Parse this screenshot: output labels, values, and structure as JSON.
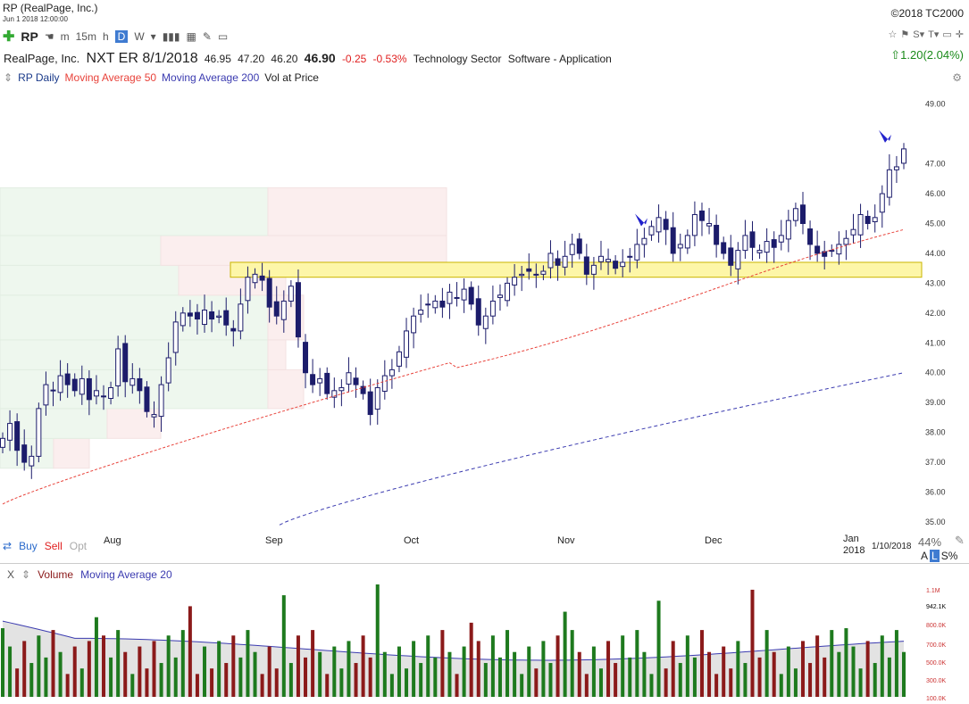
{
  "header": {
    "title": "RP (RealPage, Inc.)",
    "timestamp": "Jun 1 2018 12:00:00",
    "copyright": "©2018 TC2000"
  },
  "toolbar": {
    "symbol": "RP",
    "intervals": [
      "m",
      "15m",
      "h",
      "D",
      "W"
    ],
    "active_interval": "D"
  },
  "quote": {
    "company": "RealPage, Inc.",
    "ticker": "NXT ER 8/1/2018",
    "open": "46.95",
    "high": "47.20",
    "low": "46.20",
    "last": "46.90",
    "change": "-0.25",
    "change_pct": "-0.53%",
    "sector": "Technology Sector",
    "industry": "Software - Application",
    "right_change": "1.20(2.04%)"
  },
  "legend": {
    "symbol_label": "RP Daily",
    "ma50": "Moving Average 50",
    "ma200": "Moving Average 200",
    "vap": "Vol at Price",
    "ma50_color": "#e8423a",
    "ma200_color": "#3b3bb0"
  },
  "bottom": {
    "buy": "Buy",
    "sell": "Sell",
    "opt": "Opt",
    "date": "1/10/2018",
    "zoom": "44%",
    "a": "A",
    "l": "L",
    "s": "S%"
  },
  "volume_legend": {
    "x": "X",
    "volume": "Volume",
    "ma20": "Moving Average 20"
  },
  "chart_data": [
    {
      "type": "candlestick",
      "y_ticks": [
        "49.00",
        "47.00",
        "46.00",
        "45.00",
        "44.00",
        "43.00",
        "42.00",
        "41.00",
        "40.00",
        "39.00",
        "38.00",
        "37.00",
        "36.00",
        "35.00"
      ],
      "x_labels": [
        "Aug",
        "Sep",
        "Oct",
        "Nov",
        "Dec",
        "Jan 2018"
      ],
      "ylim": [
        34.7,
        49.5
      ],
      "highlight_zone": [
        43.2,
        43.7
      ],
      "closes": [
        37.8,
        38.3,
        37.4,
        37.0,
        37.2,
        38.8,
        39.6,
        39.4,
        39.9,
        39.6,
        39.4,
        39.8,
        39.1,
        39.4,
        39.2,
        39.5,
        40.8,
        39.7,
        39.8,
        39.4,
        38.7,
        38.6,
        39.6,
        40.5,
        41.7,
        42.0,
        41.9,
        41.8,
        42.1,
        41.8,
        41.9,
        41.6,
        41.4,
        42.3,
        43.2,
        43.3,
        43.1,
        42.2,
        41.9,
        42.4,
        42.9,
        41.2,
        40.0,
        39.6,
        39.8,
        39.3,
        39.4,
        39.5,
        40.0,
        39.6,
        39.3,
        38.6,
        39.5,
        39.9,
        40.1,
        40.7,
        41.4,
        41.9,
        42.1,
        42.3,
        42.4,
        42.2,
        42.7,
        42.5,
        42.8,
        42.3,
        41.6,
        41.9,
        42.4,
        42.6,
        43.0,
        43.2,
        43.3,
        43.4,
        43.3,
        43.4,
        44.0,
        43.6,
        43.9,
        44.3,
        44.0,
        43.3,
        43.6,
        43.9,
        43.8,
        43.5,
        43.7,
        43.9,
        44.3,
        44.5,
        44.9,
        45.2,
        44.8,
        44.0,
        44.3,
        44.6,
        45.3,
        45.1,
        45.0,
        44.3,
        44.0,
        43.6,
        44.1,
        44.6,
        44.2,
        44.1,
        44.4,
        44.2,
        44.6,
        45.1,
        45.5,
        45.0,
        44.3,
        44.0,
        43.9,
        44.1,
        44.3,
        44.5,
        44.8,
        45.3,
        45.0,
        45.2,
        46.0,
        46.8,
        46.9,
        47.5
      ]
    },
    {
      "type": "bar",
      "name": "Volume",
      "y_ticks": [
        "1.1M",
        "942.1K",
        "800.0K",
        "700.0K",
        "500.0K",
        "300.0K",
        "100.0K"
      ],
      "ylim": [
        0,
        1150000
      ]
    }
  ]
}
